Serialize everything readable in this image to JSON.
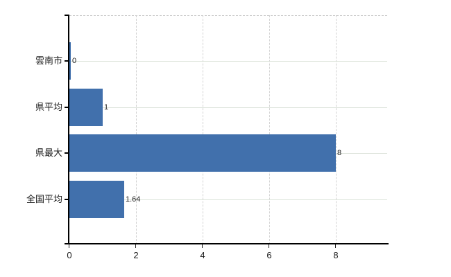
{
  "chart_data": {
    "type": "bar",
    "orientation": "horizontal",
    "title": "",
    "xlabel": "",
    "ylabel": "",
    "categories": [
      "雲南市",
      "県平均",
      "県最大",
      "全国平均"
    ],
    "values": [
      0,
      1,
      8,
      1.64
    ],
    "data_labels": [
      "0",
      "1",
      "8",
      "1.64"
    ],
    "x_ticks": [
      "0",
      "2",
      "4",
      "6",
      "8"
    ],
    "x_tick_values": [
      0,
      2,
      4,
      6,
      8
    ],
    "xlim": [
      0,
      9.5
    ],
    "grid": true,
    "legend": false,
    "colors": {
      "bar": "#4170ac",
      "axis": "#000000",
      "tick": "#222222",
      "h_gridline": "#dce3da",
      "v_gridline": "#d2d2d2",
      "plot_top_border": "#c9c9c9",
      "text": "#1a1a1a",
      "data_label": "#222222",
      "background": "#ffffff"
    }
  }
}
